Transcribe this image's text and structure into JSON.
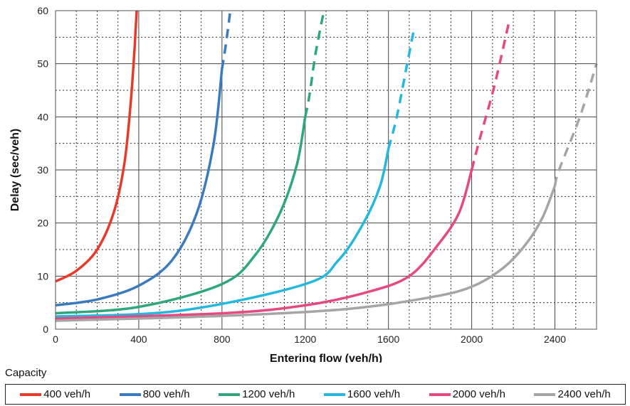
{
  "chart_data": {
    "type": "line",
    "xlabel": "Entering flow (veh/h)",
    "ylabel": "Delay (sec/veh)",
    "xlim": [
      0,
      2600
    ],
    "ylim": [
      0,
      60
    ],
    "x_ticks": [
      0,
      400,
      800,
      1200,
      1600,
      2000,
      2400
    ],
    "y_ticks": [
      0,
      10,
      20,
      30,
      40,
      50,
      60
    ],
    "grid": "solid major, dashed minor",
    "legend_title": "Capacity",
    "legend_position": "bottom",
    "series": [
      {
        "name": "400 veh/h",
        "color": "#e8392a",
        "solid": [
          [
            0,
            9
          ],
          [
            100,
            11
          ],
          [
            200,
            15
          ],
          [
            280,
            22
          ],
          [
            330,
            31
          ],
          [
            360,
            42
          ],
          [
            380,
            53
          ],
          [
            390,
            60
          ]
        ],
        "dashed": []
      },
      {
        "name": "800 veh/h",
        "color": "#3a7bbf",
        "solid": [
          [
            0,
            4.5
          ],
          [
            200,
            5.6
          ],
          [
            400,
            8.2
          ],
          [
            560,
            13
          ],
          [
            680,
            22
          ],
          [
            760,
            35
          ],
          [
            800,
            49
          ]
        ],
        "dashed": [
          [
            820,
            54
          ],
          [
            840,
            60
          ]
        ]
      },
      {
        "name": "1200 veh/h",
        "color": "#2ea87a",
        "solid": [
          [
            0,
            3
          ],
          [
            400,
            4.2
          ],
          [
            800,
            8.5
          ],
          [
            960,
            14
          ],
          [
            1080,
            22
          ],
          [
            1160,
            31
          ],
          [
            1200,
            40
          ]
        ],
        "dashed": [
          [
            1220,
            44
          ],
          [
            1250,
            52
          ],
          [
            1290,
            60
          ]
        ]
      },
      {
        "name": "1600 veh/h",
        "color": "#23b8e0",
        "solid": [
          [
            0,
            2.4
          ],
          [
            600,
            3.5
          ],
          [
            1200,
            8.5
          ],
          [
            1360,
            13
          ],
          [
            1480,
            20
          ],
          [
            1560,
            27
          ],
          [
            1600,
            34
          ]
        ],
        "dashed": [
          [
            1640,
            40
          ],
          [
            1690,
            50
          ],
          [
            1720,
            56
          ]
        ]
      },
      {
        "name": "2000 veh/h",
        "color": "#e84882",
        "solid": [
          [
            0,
            2
          ],
          [
            800,
            3
          ],
          [
            1200,
            4.5
          ],
          [
            1500,
            7
          ],
          [
            1700,
            10
          ],
          [
            1840,
            16
          ],
          [
            1940,
            22
          ],
          [
            2000,
            30
          ]
        ],
        "dashed": [
          [
            2040,
            36
          ],
          [
            2110,
            46
          ],
          [
            2180,
            58
          ]
        ]
      },
      {
        "name": "2400 veh/h",
        "color": "#a5a5a5",
        "solid": [
          [
            0,
            1.6
          ],
          [
            800,
            2.5
          ],
          [
            1400,
            3.8
          ],
          [
            1800,
            6
          ],
          [
            2000,
            8
          ],
          [
            2150,
            11.5
          ],
          [
            2260,
            16
          ],
          [
            2340,
            21
          ],
          [
            2400,
            27
          ]
        ],
        "dashed": [
          [
            2420,
            30
          ],
          [
            2520,
            40
          ],
          [
            2600,
            50
          ]
        ]
      }
    ]
  }
}
